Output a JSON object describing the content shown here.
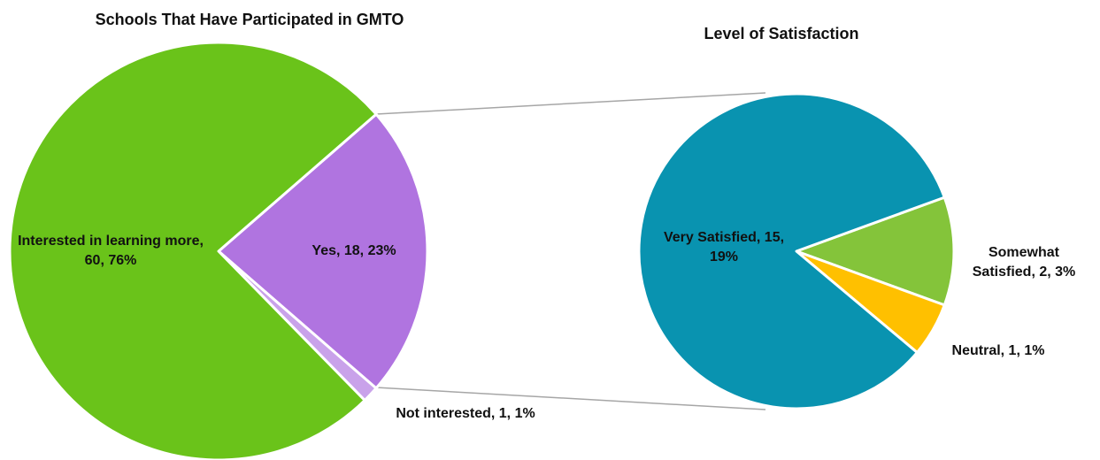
{
  "chart_data": [
    {
      "type": "pie",
      "title": "Schools That Have Participated in GMTO",
      "values": [
        18,
        1,
        60
      ],
      "value_labels": [
        "Yes, 18, 23%",
        "Not interested, 1, 1%",
        "Interested in learning more, 60, 76%"
      ],
      "colors": [
        "#b074e0",
        "#c9a2ea",
        "#6ac31a"
      ]
    },
    {
      "type": "pie",
      "title": "Level of Satisfaction",
      "values": [
        2,
        1,
        15
      ],
      "value_labels": [
        "Somewhat Satisfied, 2, 3%",
        "Neutral, 1, 1%",
        "Very Satisfied, 15, 19%"
      ],
      "colors": [
        "#84c43a",
        "#ffc000",
        "#0993b0"
      ]
    }
  ]
}
